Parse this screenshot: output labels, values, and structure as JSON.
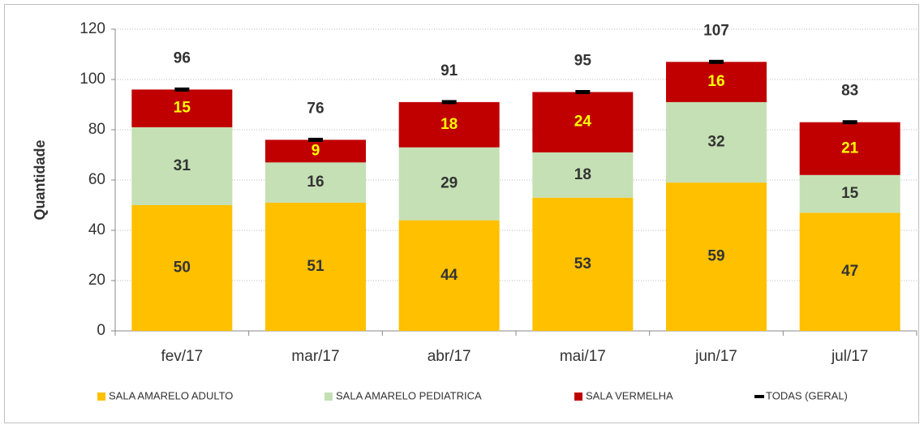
{
  "chart_data": {
    "type": "bar",
    "stacked": true,
    "ylabel": "Quantidade",
    "categories": [
      "fev/17",
      "mar/17",
      "abr/17",
      "mai/17",
      "jun/17",
      "jul/17"
    ],
    "series": [
      {
        "name": "SALA AMARELO ADULTO",
        "color": "#ffc000",
        "label_color": "#333333",
        "values": [
          50,
          51,
          44,
          53,
          59,
          47
        ]
      },
      {
        "name": "SALA AMARELO PEDIATRICA",
        "color": "#c5e0b4",
        "label_color": "#333333",
        "values": [
          31,
          16,
          29,
          18,
          32,
          15
        ]
      },
      {
        "name": "SALA VERMELHA",
        "color": "#c00000",
        "label_color": "#ffff00",
        "values": [
          15,
          9,
          18,
          24,
          16,
          21
        ]
      },
      {
        "name": "TODAS (GERAL)",
        "type": "marker",
        "color": "#000000",
        "values": [
          96,
          76,
          91,
          95,
          107,
          83
        ]
      }
    ],
    "ylim": [
      0,
      120
    ],
    "yticks": [
      0,
      20,
      40,
      60,
      80,
      100,
      120
    ],
    "grid": true
  }
}
